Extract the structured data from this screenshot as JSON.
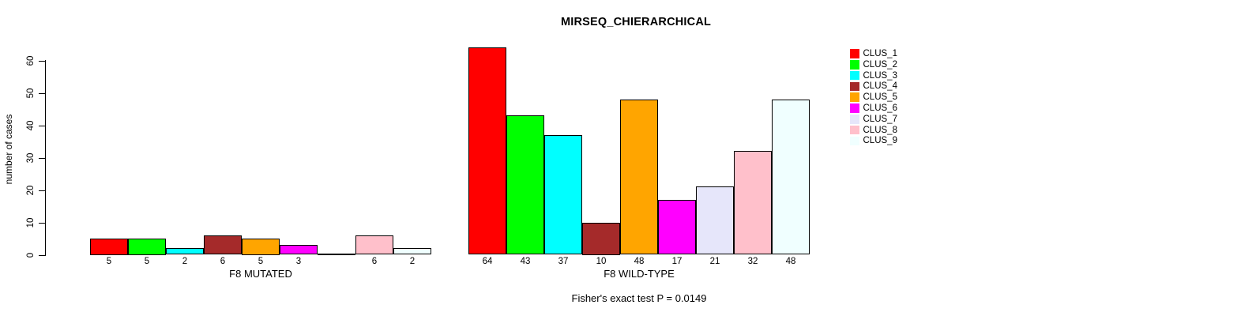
{
  "chart_data": {
    "type": "bar",
    "title": "MIRSEQ_CHIERARCHICAL",
    "ylabel": "number of cases",
    "xlabel": "",
    "footer": "Fisher's exact test P = 0.0149",
    "ylim": [
      0,
      60
    ],
    "yticks": [
      0,
      10,
      20,
      30,
      40,
      50,
      60
    ],
    "grid": false,
    "legend_position": "right",
    "legend": [
      {
        "label": "CLUS_1",
        "color": "#ff0000"
      },
      {
        "label": "CLUS_2",
        "color": "#00ff00"
      },
      {
        "label": "CLUS_3",
        "color": "#00ffff"
      },
      {
        "label": "CLUS_4",
        "color": "#a52a2a"
      },
      {
        "label": "CLUS_5",
        "color": "#ffa500"
      },
      {
        "label": "CLUS_6",
        "color": "#ff00ff"
      },
      {
        "label": "CLUS_7",
        "color": "#e6e6fa"
      },
      {
        "label": "CLUS_8",
        "color": "#ffc0cb"
      },
      {
        "label": "CLUS_9",
        "color": "#f0ffff"
      }
    ],
    "groups": [
      {
        "label": "F8 MUTATED",
        "values": [
          5,
          5,
          2,
          6,
          5,
          3,
          0,
          6,
          2
        ]
      },
      {
        "label": "F8 WILD-TYPE",
        "values": [
          64,
          43,
          37,
          10,
          48,
          17,
          21,
          32,
          48
        ]
      }
    ]
  }
}
